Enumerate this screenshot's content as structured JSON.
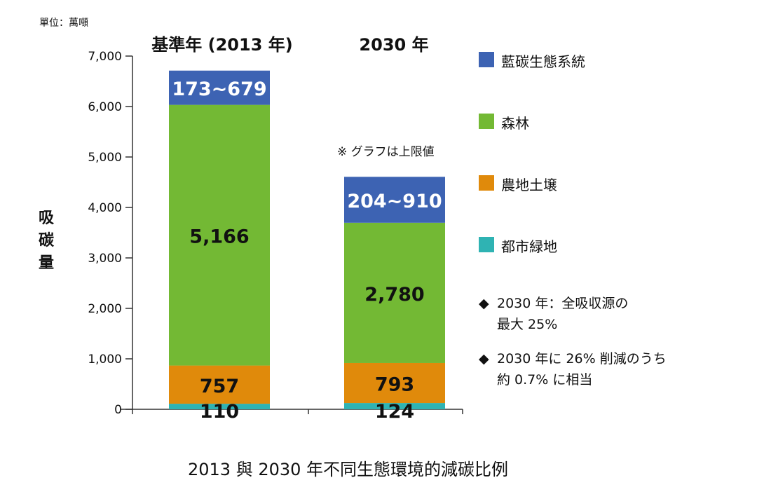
{
  "unit_label": "單位：萬噸",
  "y_axis_title": "吸碳量",
  "note": "※ グラフは上限値",
  "caption": "2013 與 2030 年不同生態環境的減碳比例",
  "chart_data": {
    "type": "bar",
    "stacked": true,
    "categories": [
      "基準年 (2013 年)",
      "2030 年"
    ],
    "ylim": [
      0,
      7000
    ],
    "yticks": [
      0,
      1000,
      2000,
      3000,
      4000,
      5000,
      6000,
      7000
    ],
    "ytick_labels": [
      "0",
      "1,000",
      "2,000",
      "3,000",
      "4,000",
      "5,000",
      "6,000",
      "7,000"
    ],
    "ylabel": "吸碳量",
    "grid": false,
    "legend_position": "right",
    "series": [
      {
        "name": "都市緑地",
        "color": "#2fb3b3",
        "values": [
          110,
          124
        ],
        "labels": [
          "110",
          "124"
        ]
      },
      {
        "name": "農地土壌",
        "color": "#e08a0b",
        "values": [
          757,
          793
        ],
        "labels": [
          "757",
          "793"
        ]
      },
      {
        "name": "森林",
        "color": "#73b934",
        "values": [
          5166,
          2780
        ],
        "labels": [
          "5,166",
          "2,780"
        ]
      },
      {
        "name": "藍碳生態系統",
        "color": "#3d63b3",
        "values": [
          679,
          910
        ],
        "labels": [
          "173~679",
          "204~910"
        ]
      }
    ]
  },
  "legend": [
    {
      "label": "藍碳生態系統",
      "color": "#3d63b3"
    },
    {
      "label": "森林",
      "color": "#73b934"
    },
    {
      "label": "農地土壌",
      "color": "#e08a0b"
    },
    {
      "label": "都市緑地",
      "color": "#2fb3b3"
    }
  ],
  "annotations": [
    {
      "marker": "◆",
      "line1": "2030 年：全吸収源の",
      "line2": "最大 25%"
    },
    {
      "marker": "◆",
      "line1": "2030 年に 26% 削減のうち",
      "line2": "約 0.7% に相当"
    }
  ]
}
